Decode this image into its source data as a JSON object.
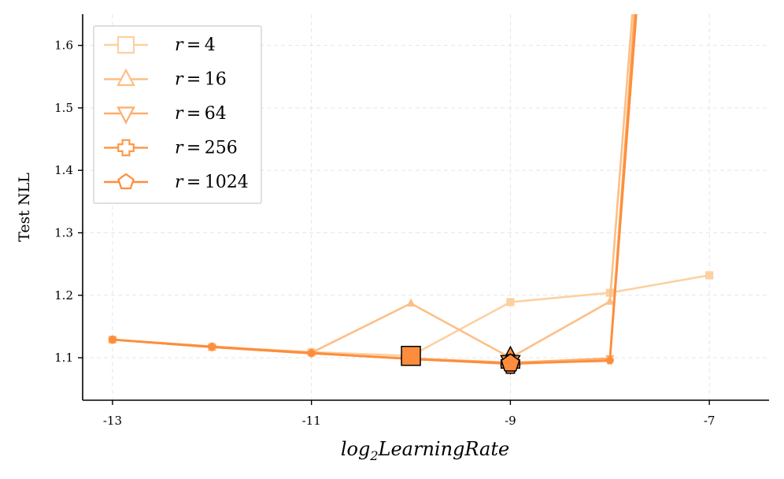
{
  "chart_data": {
    "type": "line",
    "title": "",
    "xlabel_base": "log",
    "xlabel_sub": "2",
    "xlabel_rest": "LearningRate",
    "ylabel": "Test NLL",
    "xlim": [
      -13.3,
      -6.4
    ],
    "ylim": [
      1.032,
      1.65
    ],
    "xticks": [
      -13,
      -11,
      -9,
      -7
    ],
    "xtick_labels": [
      "-13",
      "-11",
      "-9",
      "-7"
    ],
    "yticks": [
      1.1,
      1.2,
      1.3,
      1.4,
      1.5,
      1.6
    ],
    "ytick_labels": [
      "1.1",
      "1.2",
      "1.3",
      "1.4",
      "1.5",
      "1.6"
    ],
    "grid": true,
    "legend_position": "top-left",
    "series": [
      {
        "name": "r = 4",
        "legend_var": "r",
        "legend_value": "4",
        "marker": "square",
        "color": "#fdd0a2",
        "points": [
          [
            -13,
            1.129
          ],
          [
            -12,
            1.117
          ],
          [
            -11,
            1.109
          ],
          [
            -10,
            1.103
          ],
          [
            -9,
            1.189
          ],
          [
            -8,
            1.204
          ],
          [
            -7,
            1.232
          ]
        ]
      },
      {
        "name": "r = 16",
        "legend_var": "r",
        "legend_value": "16",
        "marker": "triangle-up",
        "color": "#fdbf86",
        "points": [
          [
            -13,
            1.129
          ],
          [
            -12,
            1.117
          ],
          [
            -11,
            1.108
          ],
          [
            -10,
            1.187
          ],
          [
            -9,
            1.1
          ],
          [
            -8,
            1.19
          ],
          [
            -7.75,
            1.7
          ]
        ]
      },
      {
        "name": "r = 64",
        "legend_var": "r",
        "legend_value": "64",
        "marker": "triangle-down",
        "color": "#fdae6b",
        "points": [
          [
            -13,
            1.129
          ],
          [
            -12,
            1.117
          ],
          [
            -11,
            1.107
          ],
          [
            -10,
            1.099
          ],
          [
            -9,
            1.092
          ],
          [
            -8,
            1.099
          ],
          [
            -7.73,
            1.7
          ]
        ]
      },
      {
        "name": "r = 256",
        "legend_var": "r",
        "legend_value": "256",
        "marker": "cross",
        "color": "#fd9b48",
        "points": [
          [
            -13,
            1.129
          ],
          [
            -12,
            1.118
          ],
          [
            -11,
            1.108
          ],
          [
            -10,
            1.098
          ],
          [
            -9,
            1.09
          ],
          [
            -8,
            1.096
          ],
          [
            -7.72,
            1.7
          ]
        ]
      },
      {
        "name": "r = 1024",
        "legend_var": "r",
        "legend_value": "1024",
        "marker": "pentagon",
        "color": "#fd8d3c",
        "points": [
          [
            -13,
            1.129
          ],
          [
            -12,
            1.117
          ],
          [
            -11,
            1.107
          ],
          [
            -10,
            1.098
          ],
          [
            -9,
            1.091
          ],
          [
            -8,
            1.095
          ],
          [
            -7.71,
            1.7
          ]
        ]
      }
    ],
    "highlight_points": [
      {
        "x": -10,
        "y": 1.103,
        "marker": "square",
        "fill": "#fd8d3c"
      },
      {
        "x": -9,
        "y": 1.1,
        "marker": "triangle-up",
        "fill": "#fd8d3c"
      },
      {
        "x": -9,
        "y": 1.092,
        "marker": "triangle-down",
        "fill": "#fd8d3c"
      },
      {
        "x": -9,
        "y": 1.09,
        "marker": "cross",
        "fill": "#fd8d3c"
      },
      {
        "x": -9,
        "y": 1.091,
        "marker": "pentagon",
        "fill": "#fd8d3c"
      }
    ]
  }
}
